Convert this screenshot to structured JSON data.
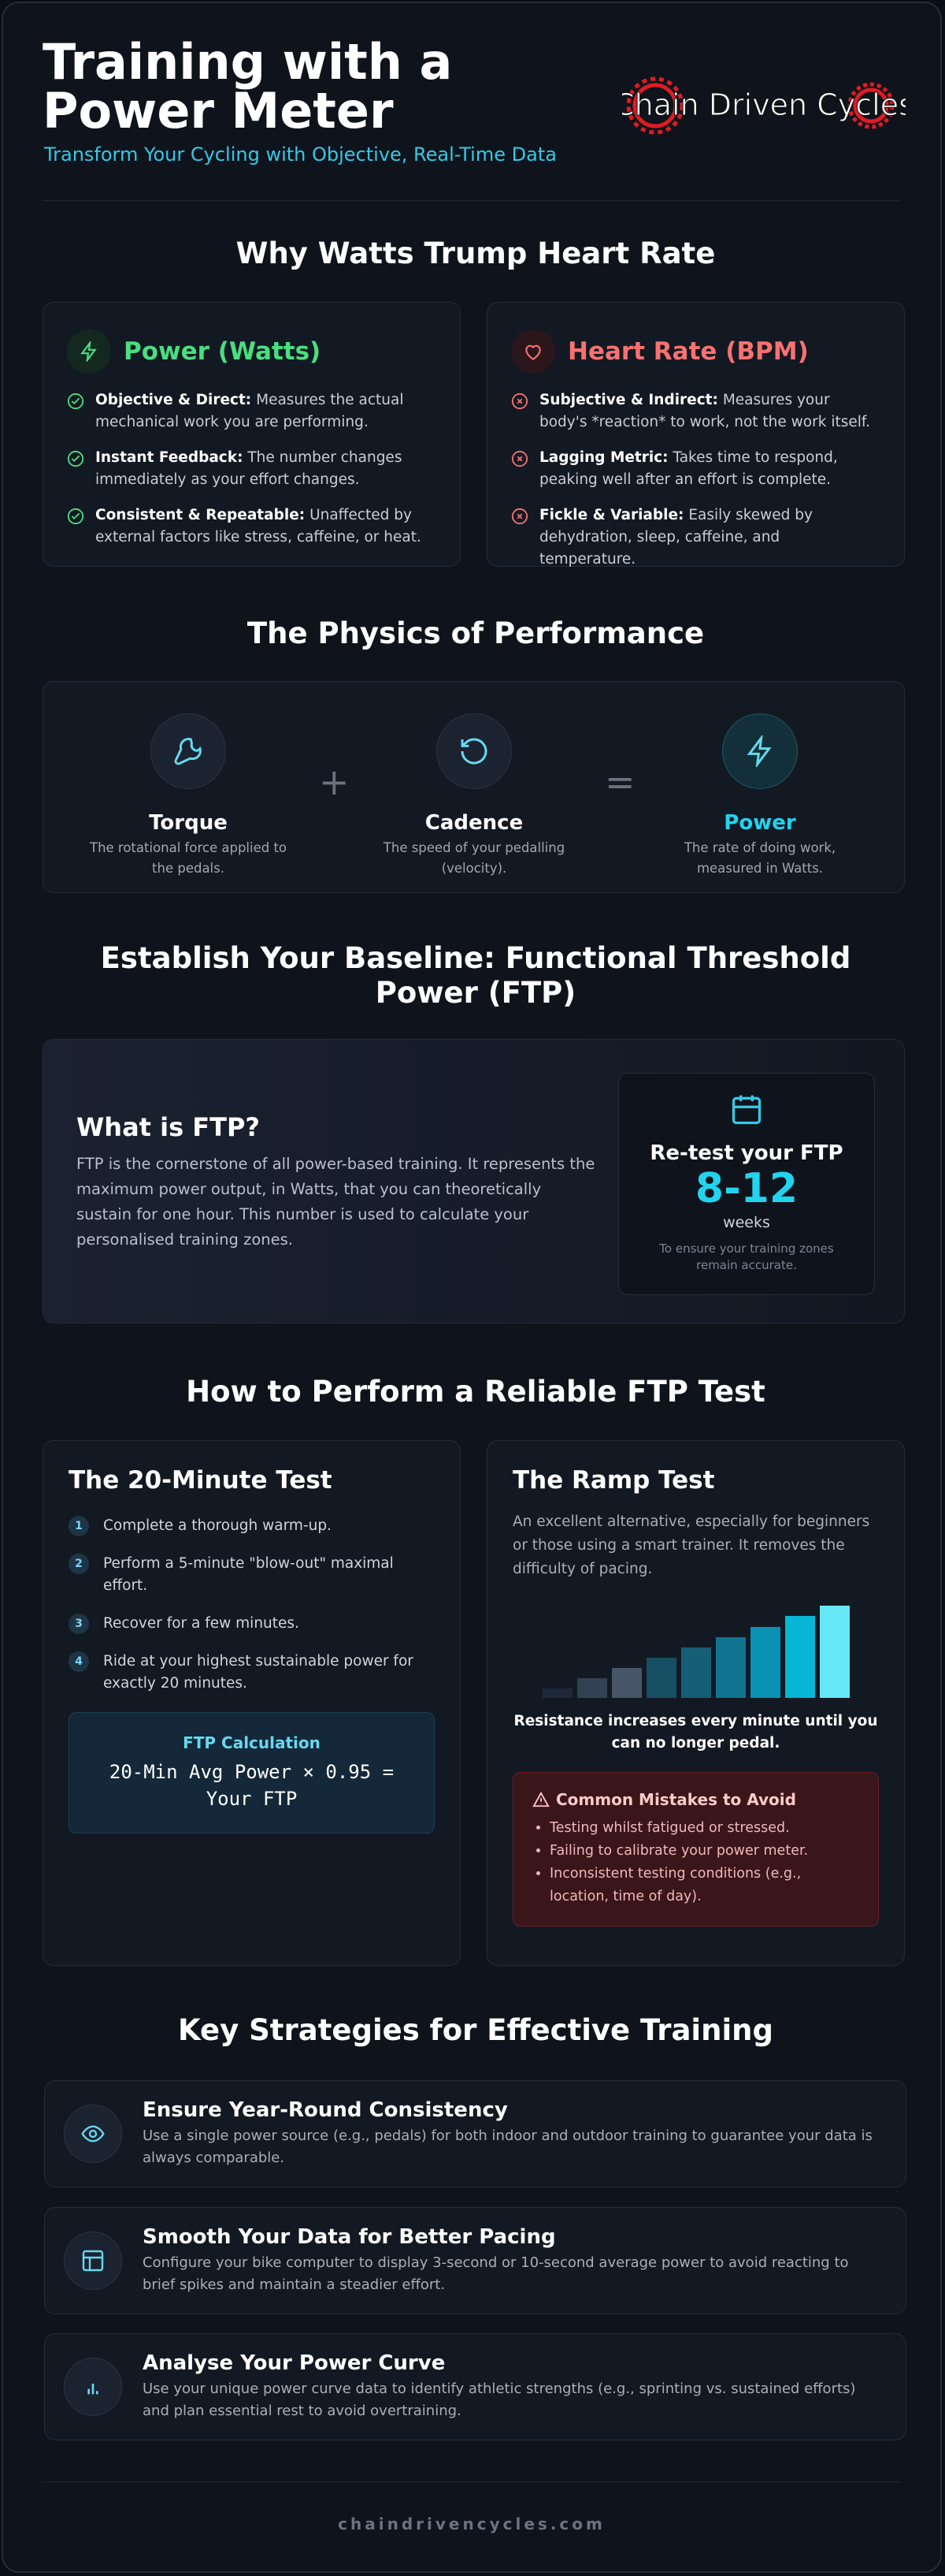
{
  "header": {
    "title": "Training with a Power Meter",
    "subtitle": "Transform Your Cycling with Objective, Real-Time Data",
    "logo": "Chain Driven Cycles"
  },
  "comparison": {
    "heading": "Why Watts Trump Heart Rate",
    "cards": [
      {
        "title": "Power (Watts)",
        "items": [
          {
            "label": "Objective & Direct:",
            "text": "Measures the actual mechanical work you are performing."
          },
          {
            "label": "Instant Feedback:",
            "text": "The number changes immediately as your effort changes."
          },
          {
            "label": "Consistent & Repeatable:",
            "text": "Unaffected by external factors like stress, caffeine, or heat."
          }
        ]
      },
      {
        "title": "Heart Rate (BPM)",
        "items": [
          {
            "label": "Subjective & Indirect:",
            "text": "Measures your body's *reaction* to work, not the work itself."
          },
          {
            "label": "Lagging Metric:",
            "text": "Takes time to respond, peaking well after an effort is complete."
          },
          {
            "label": "Fickle & Variable:",
            "text": "Easily skewed by dehydration, sleep, caffeine, and temperature."
          }
        ]
      }
    ]
  },
  "physics": {
    "heading": "The Physics of Performance",
    "items": [
      {
        "title": "Torque",
        "text": "The rotational force applied to the pedals."
      },
      {
        "title": "Cadence",
        "text": "The speed of your pedalling (velocity)."
      },
      {
        "title": "Power",
        "text": "The rate of doing work, measured in Watts."
      }
    ],
    "operators": [
      "+",
      "="
    ]
  },
  "ftp": {
    "heading": "Establish Your Baseline: Functional Threshold Power (FTP)",
    "title": "What is FTP?",
    "text": "FTP is the cornerstone of all power-based training. It represents the maximum power output, in Watts, that you can theoretically sustain for one hour. This number is used to calculate your personalised training zones.",
    "retest": {
      "title": "Re-test your FTP",
      "value": "8-12",
      "unit": "weeks",
      "note": "To ensure your training zones remain accurate."
    }
  },
  "test": {
    "heading": "How to Perform a Reliable FTP Test",
    "twenty": {
      "title": "The 20-Minute Test",
      "steps": [
        {
          "number": "1",
          "text": "Complete a thorough warm-up."
        },
        {
          "number": "2",
          "text": "Perform a 5-minute \"blow-out\" maximal effort."
        },
        {
          "number": "3",
          "text": "Recover for a few minutes."
        },
        {
          "number": "4",
          "text": "Ride at your highest sustainable power for exactly 20 minutes."
        }
      ],
      "calc_title": "FTP Calculation",
      "calc_formula": "20-Min Avg Power × 0.95 = Your FTP"
    },
    "ramp": {
      "title": "The Ramp Test",
      "text": "An excellent alternative, especially for beginners or those using a smart trainer. It removes the difficulty of pacing.",
      "caption": "Resistance increases every minute until you can no longer pedal.",
      "mistakes_title": "Common Mistakes to Avoid",
      "mistakes": [
        "Testing whilst fatigued or stressed.",
        "Failing to calibrate your power meter.",
        "Inconsistent testing conditions (e.g., location, time of day)."
      ]
    }
  },
  "strategies": {
    "heading": "Key Strategies for Effective Training",
    "items": [
      {
        "title": "Ensure Year-Round Consistency",
        "text": "Use a single power source (e.g., pedals) for both indoor and outdoor training to guarantee your data is always comparable."
      },
      {
        "title": "Smooth Your Data for Better Pacing",
        "text": "Configure your bike computer to display 3-second or 10-second average power to avoid reacting to brief spikes and maintain a steadier effort."
      },
      {
        "title": "Analyse Your Power Curve",
        "text": "Use your unique power curve data to identify athletic strengths (e.g., sprinting vs. sustained efforts) and plan essential rest to avoid overtraining."
      }
    ]
  },
  "footer": "chaindrivencycles.com"
}
